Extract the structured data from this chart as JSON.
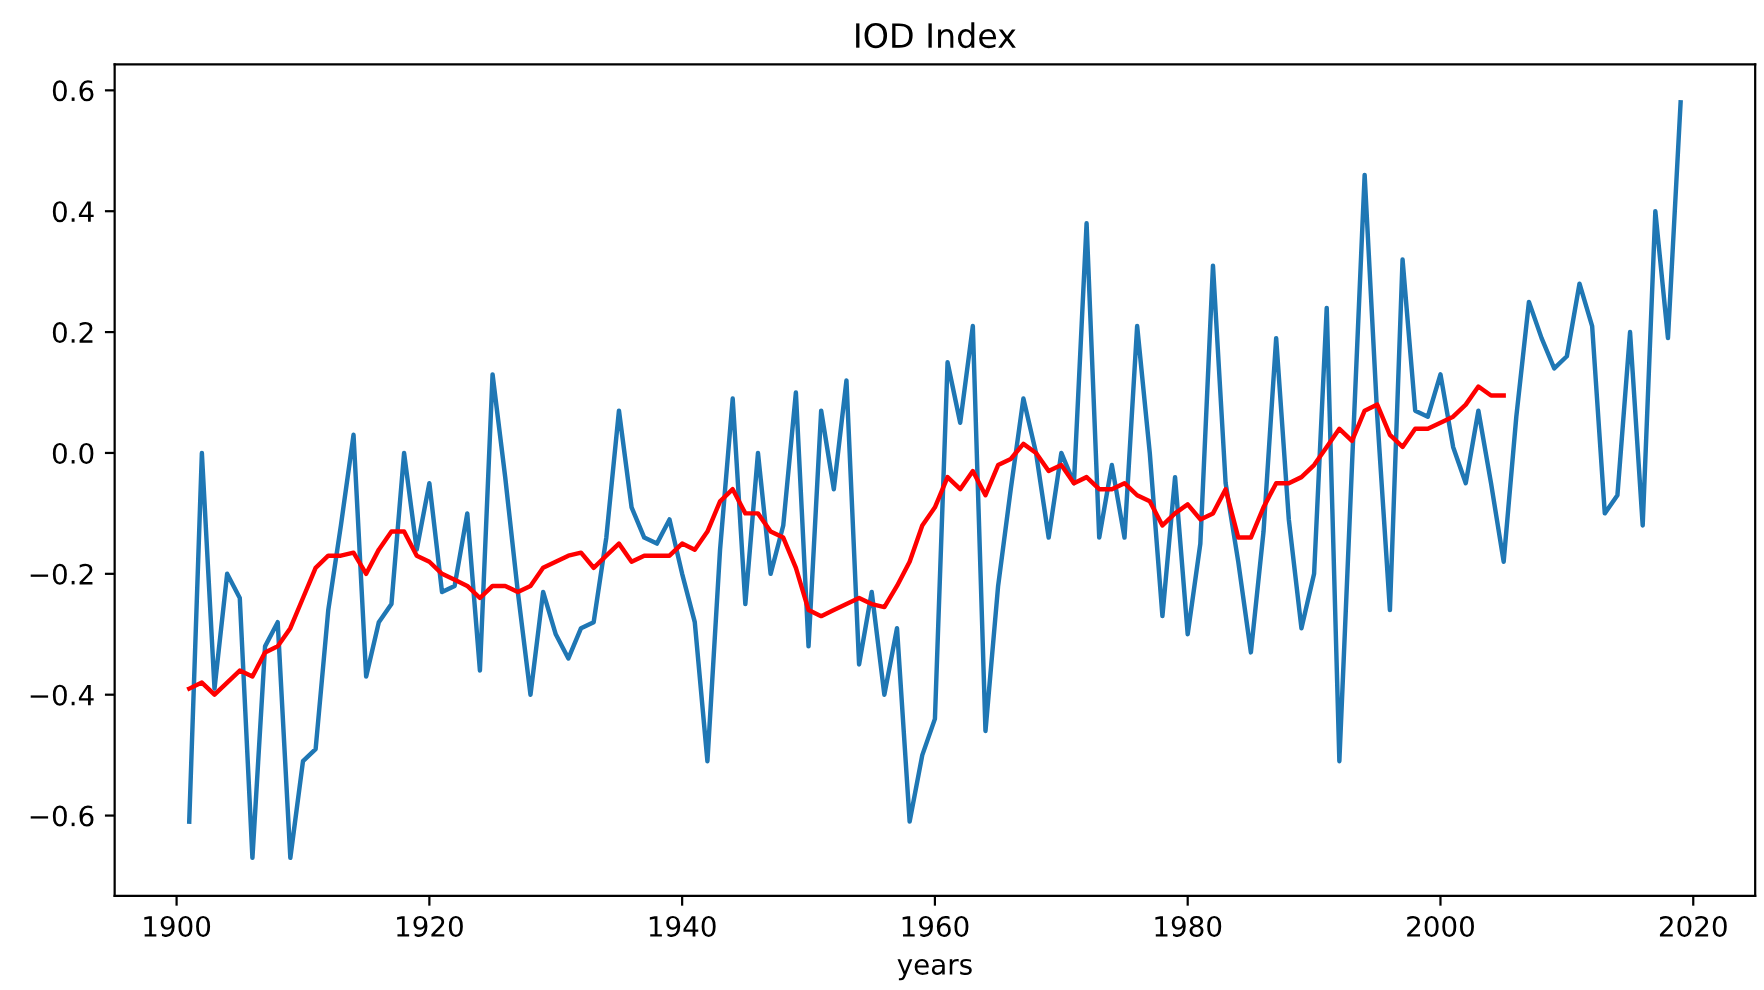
{
  "chart_data": {
    "type": "line",
    "title": "IOD Index",
    "xlabel": "years",
    "xlim": [
      1895.1,
      2024.9
    ],
    "ylim": [
      -0.733,
      0.643
    ],
    "xticks": [
      1900,
      1920,
      1940,
      1960,
      1980,
      2000,
      2020
    ],
    "yticks": [
      {
        "value": -0.6,
        "label": "−0.6"
      },
      {
        "value": -0.4,
        "label": "−0.4"
      },
      {
        "value": -0.2,
        "label": "−0.2"
      },
      {
        "value": 0.0,
        "label": "0.0"
      },
      {
        "value": 0.2,
        "label": "0.2"
      },
      {
        "value": 0.4,
        "label": "0.4"
      },
      {
        "value": 0.6,
        "label": "0.6"
      }
    ],
    "grid": false,
    "legend": false,
    "marker": "none",
    "line_style": "solid",
    "series": [
      {
        "color": "#1f77b4",
        "x": [
          1901,
          1902,
          1903,
          1904,
          1905,
          1906,
          1907,
          1908,
          1909,
          1910,
          1911,
          1912,
          1913,
          1914,
          1915,
          1916,
          1917,
          1918,
          1919,
          1920,
          1921,
          1922,
          1923,
          1924,
          1925,
          1926,
          1927,
          1928,
          1929,
          1930,
          1931,
          1932,
          1933,
          1934,
          1935,
          1936,
          1937,
          1938,
          1939,
          1940,
          1941,
          1942,
          1943,
          1944,
          1945,
          1946,
          1947,
          1948,
          1949,
          1950,
          1951,
          1952,
          1953,
          1954,
          1955,
          1956,
          1957,
          1958,
          1959,
          1960,
          1961,
          1962,
          1963,
          1964,
          1965,
          1966,
          1967,
          1968,
          1969,
          1970,
          1971,
          1972,
          1973,
          1974,
          1975,
          1976,
          1977,
          1978,
          1979,
          1980,
          1981,
          1982,
          1983,
          1984,
          1985,
          1986,
          1987,
          1988,
          1989,
          1990,
          1991,
          1992,
          1993,
          1994,
          1995,
          1996,
          1997,
          1998,
          1999,
          2000,
          2001,
          2002,
          2003,
          2004,
          2005,
          2006,
          2007,
          2008,
          2009,
          2010,
          2011,
          2012,
          2013,
          2014,
          2015,
          2016,
          2017,
          2018,
          2019
        ],
        "values": [
          -0.61,
          0.0,
          -0.39,
          -0.2,
          -0.24,
          -0.67,
          -0.32,
          -0.28,
          -0.67,
          -0.51,
          -0.49,
          -0.26,
          -0.12,
          0.03,
          -0.37,
          -0.28,
          -0.25,
          0.0,
          -0.16,
          -0.05,
          -0.23,
          -0.22,
          -0.1,
          -0.36,
          0.13,
          -0.04,
          -0.23,
          -0.4,
          -0.23,
          -0.3,
          -0.34,
          -0.29,
          -0.28,
          -0.14,
          0.07,
          -0.09,
          -0.14,
          -0.15,
          -0.11,
          -0.2,
          -0.28,
          -0.51,
          -0.16,
          0.09,
          -0.25,
          0.0,
          -0.2,
          -0.12,
          0.1,
          -0.32,
          0.07,
          -0.06,
          0.12,
          -0.35,
          -0.23,
          -0.4,
          -0.29,
          -0.61,
          -0.5,
          -0.44,
          0.15,
          0.05,
          0.21,
          -0.46,
          -0.22,
          -0.06,
          0.09,
          0.0,
          -0.14,
          0.0,
          -0.05,
          0.38,
          -0.14,
          -0.02,
          -0.14,
          0.21,
          0.0,
          -0.27,
          -0.04,
          -0.3,
          -0.15,
          0.31,
          -0.05,
          -0.18,
          -0.33,
          -0.13,
          0.19,
          -0.11,
          -0.29,
          -0.2,
          0.24,
          -0.51,
          -0.02,
          0.46,
          0.06,
          -0.26,
          0.32,
          0.07,
          0.06,
          0.13,
          0.01,
          -0.05,
          0.07,
          -0.05,
          -0.18,
          0.06,
          0.25,
          0.19,
          0.14,
          0.16,
          0.28,
          0.21,
          -0.1,
          -0.07,
          0.2,
          -0.12,
          0.4,
          0.19,
          0.58
        ]
      },
      {
        "color": "#ff0000",
        "x": [
          1901,
          1902,
          1903,
          1904,
          1905,
          1906,
          1907,
          1908,
          1909,
          1910,
          1911,
          1912,
          1913,
          1914,
          1915,
          1916,
          1917,
          1918,
          1919,
          1920,
          1921,
          1922,
          1923,
          1924,
          1925,
          1926,
          1927,
          1928,
          1929,
          1930,
          1931,
          1932,
          1933,
          1934,
          1935,
          1936,
          1937,
          1938,
          1939,
          1940,
          1941,
          1942,
          1943,
          1944,
          1945,
          1946,
          1947,
          1948,
          1949,
          1950,
          1951,
          1952,
          1953,
          1954,
          1955,
          1956,
          1957,
          1958,
          1959,
          1960,
          1961,
          1962,
          1963,
          1964,
          1965,
          1966,
          1967,
          1968,
          1969,
          1970,
          1971,
          1972,
          1973,
          1974,
          1975,
          1976,
          1977,
          1978,
          1979,
          1980,
          1981,
          1982,
          1983,
          1984,
          1985,
          1986,
          1987,
          1988,
          1989,
          1990,
          1991,
          1992,
          1993,
          1994,
          1995,
          1996,
          1997,
          1998,
          1999,
          2000,
          2001,
          2002,
          2003,
          2004,
          2005
        ],
        "values": [
          -0.39,
          -0.38,
          -0.4,
          -0.38,
          -0.36,
          -0.37,
          -0.33,
          -0.32,
          -0.29,
          -0.24,
          -0.19,
          -0.17,
          -0.17,
          -0.165,
          -0.2,
          -0.16,
          -0.13,
          -0.13,
          -0.17,
          -0.18,
          -0.2,
          -0.21,
          -0.22,
          -0.24,
          -0.22,
          -0.22,
          -0.23,
          -0.22,
          -0.19,
          -0.18,
          -0.17,
          -0.165,
          -0.19,
          -0.17,
          -0.15,
          -0.18,
          -0.17,
          -0.17,
          -0.17,
          -0.15,
          -0.16,
          -0.13,
          -0.08,
          -0.06,
          -0.1,
          -0.1,
          -0.13,
          -0.14,
          -0.19,
          -0.26,
          -0.27,
          -0.26,
          -0.25,
          -0.24,
          -0.25,
          -0.255,
          -0.22,
          -0.18,
          -0.12,
          -0.09,
          -0.04,
          -0.06,
          -0.03,
          -0.07,
          -0.02,
          -0.01,
          0.015,
          0.0,
          -0.03,
          -0.02,
          -0.05,
          -0.04,
          -0.06,
          -0.06,
          -0.05,
          -0.07,
          -0.08,
          -0.12,
          -0.1,
          -0.085,
          -0.11,
          -0.1,
          -0.06,
          -0.14,
          -0.14,
          -0.09,
          -0.05,
          -0.05,
          -0.04,
          -0.02,
          0.01,
          0.04,
          0.02,
          0.07,
          0.08,
          0.03,
          0.01,
          0.04,
          0.04,
          0.05,
          0.06,
          0.08,
          0.11,
          0.095,
          0.095
        ]
      }
    ]
  }
}
